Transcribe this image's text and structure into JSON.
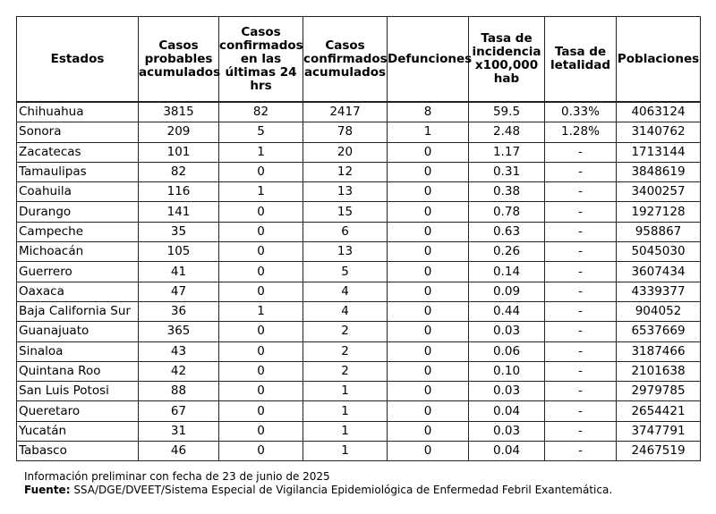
{
  "table": {
    "headers": [
      "Estados",
      "Casos probables acumulados",
      "Casos confirmados en las últimas 24 hrs",
      "Casos confirmados acumulados",
      "Defunciones",
      "Tasa de incidencia x100,000 hab",
      "Tasa de letalidad",
      "Poblaciones"
    ],
    "rows": [
      [
        "Chihuahua",
        "3815",
        "82",
        "2417",
        "8",
        "59.5",
        "0.33%",
        "4063124"
      ],
      [
        "Sonora",
        "209",
        "5",
        "78",
        "1",
        "2.48",
        "1.28%",
        "3140762"
      ],
      [
        "Zacatecas",
        "101",
        "1",
        "20",
        "0",
        "1.17",
        "-",
        "1713144"
      ],
      [
        "Tamaulipas",
        "82",
        "0",
        "12",
        "0",
        "0.31",
        "-",
        "3848619"
      ],
      [
        "Coahuila",
        "116",
        "1",
        "13",
        "0",
        "0.38",
        "-",
        "3400257"
      ],
      [
        "Durango",
        "141",
        "0",
        "15",
        "0",
        "0.78",
        "-",
        "1927128"
      ],
      [
        "Campeche",
        "35",
        "0",
        "6",
        "0",
        "0.63",
        "-",
        "958867"
      ],
      [
        "Michoacán",
        "105",
        "0",
        "13",
        "0",
        "0.26",
        "-",
        "5045030"
      ],
      [
        "Guerrero",
        "41",
        "0",
        "5",
        "0",
        "0.14",
        "-",
        "3607434"
      ],
      [
        "Oaxaca",
        "47",
        "0",
        "4",
        "0",
        "0.09",
        "-",
        "4339377"
      ],
      [
        "Baja California Sur",
        "36",
        "1",
        "4",
        "0",
        "0.44",
        "-",
        "904052"
      ],
      [
        "Guanajuato",
        "365",
        "0",
        "2",
        "0",
        "0.03",
        "-",
        "6537669"
      ],
      [
        "Sinaloa",
        "43",
        "0",
        "2",
        "0",
        "0.06",
        "-",
        "3187466"
      ],
      [
        "Quintana Roo",
        "42",
        "0",
        "2",
        "0",
        "0.10",
        "-",
        "2101638"
      ],
      [
        "San  Luis Potosi",
        "88",
        "0",
        "1",
        "0",
        "0.03",
        "-",
        "2979785"
      ],
      [
        "Queretaro",
        "67",
        "0",
        "1",
        "0",
        "0.04",
        "-",
        "2654421"
      ],
      [
        "Yucatán",
        "31",
        "0",
        "1",
        "0",
        "0.03",
        "-",
        "3747791"
      ],
      [
        "Tabasco",
        "46",
        "0",
        "1",
        "0",
        "0.04",
        "-",
        "2467519"
      ]
    ]
  },
  "notes": {
    "info": "Información preliminar con fecha de 23 de junio de 2025",
    "source_label": "Fuente:",
    "source_text": " SSA/DGE/DVEET/Sistema Especial de Vigilancia Epidemiológica de Enfermedad Febril Exantemática."
  }
}
